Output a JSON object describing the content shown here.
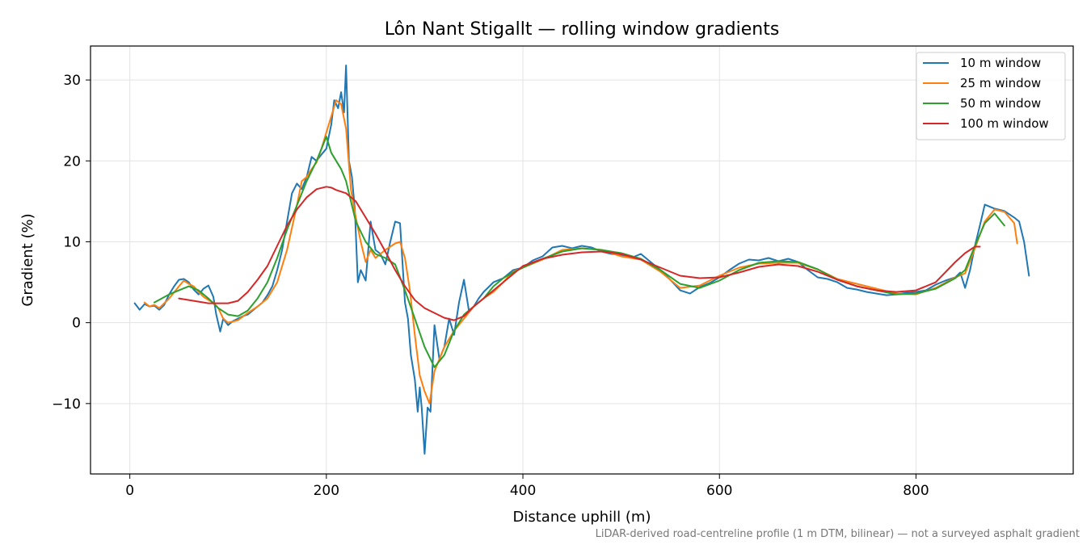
{
  "chart_data": {
    "type": "line",
    "title": "Lôn Nant Stigallt — rolling window gradients",
    "xlabel": "Distance uphill (m)",
    "ylabel": "Gradient (%)",
    "xlim": [
      -40,
      960
    ],
    "ylim": [
      -18.7,
      34.2
    ],
    "xticks": [
      0,
      200,
      400,
      600,
      800
    ],
    "yticks": [
      -10,
      0,
      10,
      20,
      30
    ],
    "grid": true,
    "legend_position": "top-right",
    "footnote": "LiDAR-derived road-centreline profile (1 m DTM, bilinear) — not a surveyed asphalt gradient",
    "series": [
      {
        "name": "10 m window",
        "color": "#1f77b4",
        "x": [
          5,
          10,
          15,
          20,
          25,
          30,
          35,
          40,
          45,
          50,
          55,
          60,
          65,
          70,
          75,
          80,
          85,
          88,
          92,
          95,
          100,
          105,
          110,
          115,
          120,
          125,
          130,
          135,
          140,
          145,
          150,
          155,
          160,
          165,
          170,
          175,
          180,
          185,
          190,
          195,
          200,
          205,
          208,
          212,
          215,
          218,
          220,
          223,
          226,
          229,
          232,
          235,
          240,
          245,
          250,
          255,
          260,
          265,
          270,
          275,
          280,
          283,
          286,
          290,
          293,
          295,
          297,
          300,
          303,
          306,
          310,
          315,
          320,
          325,
          330,
          335,
          340,
          345,
          350,
          355,
          360,
          370,
          380,
          390,
          400,
          410,
          420,
          430,
          440,
          450,
          460,
          470,
          480,
          490,
          500,
          510,
          520,
          530,
          540,
          550,
          560,
          570,
          580,
          590,
          600,
          610,
          620,
          630,
          640,
          650,
          660,
          670,
          680,
          690,
          700,
          710,
          720,
          730,
          740,
          750,
          760,
          770,
          780,
          790,
          800,
          810,
          820,
          830,
          840,
          845,
          850,
          855,
          860,
          865,
          870,
          880,
          890,
          900,
          905,
          910,
          915
        ],
        "values": [
          2.4,
          1.6,
          2.3,
          2.0,
          2.1,
          1.6,
          2.2,
          3.5,
          4.5,
          5.3,
          5.4,
          5.0,
          4.1,
          3.5,
          4.2,
          4.6,
          3.2,
          1.0,
          -1.1,
          0.5,
          -0.3,
          0.2,
          0.5,
          0.8,
          1.0,
          1.5,
          2.0,
          2.5,
          3.4,
          4.5,
          6.5,
          9.0,
          12.5,
          16.0,
          17.2,
          16.5,
          18.0,
          20.5,
          20.0,
          20.8,
          21.5,
          24.5,
          27.5,
          26.5,
          28.5,
          26.0,
          31.8,
          20.0,
          18.0,
          14.0,
          5.0,
          6.5,
          5.2,
          12.5,
          9.0,
          8.5,
          7.2,
          10.0,
          12.5,
          12.3,
          2.5,
          0.5,
          -4.0,
          -7.0,
          -11.0,
          -8.0,
          -10.5,
          -16.2,
          -10.5,
          -11.0,
          -0.3,
          -4.5,
          -3.0,
          0.5,
          -1.5,
          2.5,
          5.3,
          1.5,
          2.0,
          3.0,
          3.8,
          5.0,
          5.5,
          6.5,
          6.8,
          7.7,
          8.2,
          9.3,
          9.5,
          9.2,
          9.5,
          9.3,
          8.8,
          8.5,
          8.4,
          8.0,
          8.5,
          7.5,
          6.5,
          5.3,
          4.0,
          3.6,
          4.4,
          4.9,
          5.6,
          6.5,
          7.3,
          7.8,
          7.7,
          8.0,
          7.6,
          7.9,
          7.5,
          6.5,
          5.6,
          5.4,
          5.0,
          4.3,
          4.1,
          3.8,
          3.6,
          3.4,
          3.5,
          3.7,
          3.8,
          4.0,
          4.7,
          5.2,
          5.6,
          6.2,
          4.3,
          6.5,
          9.5,
          12.0,
          14.6,
          14.1,
          13.8,
          13.0,
          12.5,
          10.0,
          5.8
        ]
      },
      {
        "name": "25 m window",
        "color": "#ff7f0e",
        "x": [
          15,
          20,
          25,
          30,
          40,
          50,
          55,
          60,
          65,
          70,
          75,
          80,
          85,
          90,
          95,
          100,
          110,
          120,
          130,
          140,
          150,
          160,
          170,
          175,
          180,
          185,
          190,
          195,
          200,
          205,
          210,
          215,
          220,
          225,
          230,
          235,
          240,
          245,
          250,
          260,
          270,
          275,
          280,
          285,
          290,
          295,
          300,
          305,
          310,
          320,
          330,
          340,
          350,
          360,
          370,
          380,
          390,
          400,
          420,
          440,
          460,
          480,
          500,
          520,
          540,
          560,
          580,
          600,
          620,
          640,
          660,
          680,
          700,
          720,
          740,
          760,
          780,
          800,
          820,
          840,
          850,
          860,
          870,
          880,
          890,
          900,
          903
        ],
        "values": [
          2.5,
          2.0,
          2.2,
          1.8,
          3.0,
          4.5,
          5.2,
          4.8,
          4.5,
          3.8,
          3.2,
          2.8,
          2.5,
          1.8,
          0.5,
          0.0,
          0.3,
          1.2,
          2.0,
          3.0,
          5.0,
          9.0,
          14.5,
          17.5,
          18.0,
          19.0,
          19.8,
          21.5,
          23.5,
          25.5,
          27.5,
          27.0,
          24.0,
          16.5,
          13.0,
          10.0,
          7.5,
          9.0,
          8.0,
          9.0,
          9.8,
          10.0,
          8.0,
          4.0,
          -1.5,
          -6.5,
          -8.5,
          -10.0,
          -6.0,
          -3.0,
          -1.0,
          0.5,
          2.0,
          3.0,
          3.8,
          5.0,
          6.3,
          6.8,
          7.8,
          9.0,
          9.2,
          9.0,
          8.2,
          7.8,
          6.3,
          4.3,
          4.6,
          5.8,
          6.8,
          7.3,
          7.4,
          7.4,
          6.6,
          5.4,
          4.8,
          4.2,
          3.6,
          3.5,
          4.3,
          5.6,
          6.1,
          9.2,
          12.5,
          14.0,
          13.7,
          12.3,
          9.8
        ]
      },
      {
        "name": "50 m window",
        "color": "#2ca02c",
        "x": [
          25,
          40,
          50,
          60,
          70,
          80,
          90,
          100,
          110,
          120,
          130,
          140,
          150,
          160,
          170,
          180,
          190,
          200,
          205,
          210,
          215,
          220,
          230,
          240,
          250,
          260,
          270,
          280,
          290,
          300,
          310,
          320,
          330,
          340,
          350,
          360,
          370,
          380,
          390,
          400,
          420,
          440,
          460,
          480,
          500,
          520,
          540,
          560,
          580,
          600,
          620,
          640,
          660,
          680,
          700,
          720,
          740,
          760,
          780,
          800,
          820,
          840,
          850,
          860,
          870,
          880,
          890
        ],
        "values": [
          2.5,
          3.5,
          4.0,
          4.5,
          4.0,
          3.0,
          1.8,
          1.0,
          0.8,
          1.5,
          3.0,
          5.0,
          8.0,
          11.5,
          14.5,
          17.5,
          20.0,
          23.0,
          21.0,
          20.0,
          19.0,
          17.5,
          12.5,
          10.0,
          8.5,
          8.0,
          7.2,
          4.0,
          0.5,
          -3.0,
          -5.5,
          -4.0,
          -1.0,
          1.0,
          2.0,
          3.0,
          4.5,
          5.5,
          6.2,
          6.8,
          7.9,
          8.8,
          9.2,
          9.0,
          8.6,
          7.9,
          6.5,
          4.8,
          4.3,
          5.2,
          6.5,
          7.4,
          7.6,
          7.5,
          6.6,
          5.3,
          4.5,
          4.0,
          3.5,
          3.6,
          4.2,
          5.5,
          6.5,
          9.5,
          12.3,
          13.5,
          12.0
        ]
      },
      {
        "name": "100 m window",
        "color": "#d62728",
        "x": [
          50,
          60,
          70,
          80,
          90,
          100,
          110,
          120,
          130,
          140,
          150,
          160,
          170,
          180,
          190,
          200,
          205,
          210,
          220,
          230,
          240,
          250,
          260,
          270,
          280,
          290,
          300,
          310,
          320,
          330,
          340,
          350,
          360,
          370,
          380,
          390,
          400,
          420,
          440,
          460,
          480,
          500,
          520,
          540,
          560,
          580,
          600,
          620,
          640,
          660,
          680,
          700,
          720,
          740,
          760,
          780,
          800,
          820,
          840,
          850,
          860,
          865
        ],
        "values": [
          3.0,
          2.8,
          2.6,
          2.4,
          2.4,
          2.4,
          2.7,
          3.8,
          5.3,
          7.0,
          9.5,
          12.0,
          14.0,
          15.5,
          16.5,
          16.8,
          16.7,
          16.4,
          16.0,
          15.0,
          13.0,
          11.0,
          8.8,
          6.5,
          4.5,
          2.8,
          1.8,
          1.2,
          0.6,
          0.3,
          0.8,
          2.0,
          3.0,
          4.0,
          5.0,
          6.0,
          7.0,
          7.9,
          8.4,
          8.7,
          8.8,
          8.5,
          7.8,
          6.8,
          5.8,
          5.5,
          5.6,
          6.2,
          6.9,
          7.2,
          7.0,
          6.3,
          5.3,
          4.5,
          4.0,
          3.8,
          4.0,
          5.0,
          7.5,
          8.6,
          9.4,
          9.4
        ]
      }
    ]
  }
}
